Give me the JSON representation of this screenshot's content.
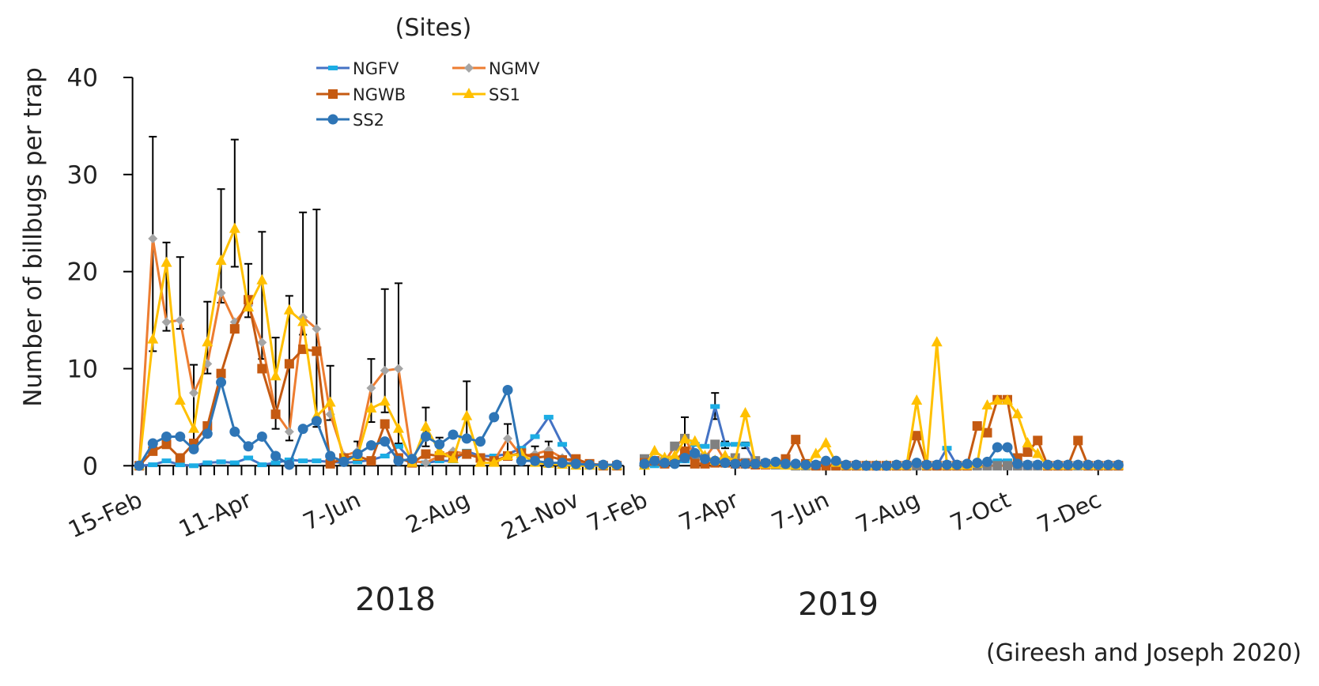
{
  "chart_data": {
    "type": "line",
    "title": "",
    "legend_title": "(Sites)",
    "ylabel": "Number of billbugs per trap",
    "ylim": [
      0,
      40
    ],
    "yticks": [
      0,
      10,
      20,
      30,
      40
    ],
    "grid": false,
    "legend_placement": "top-center",
    "citation": "(Gireesh and Joseph 2020)",
    "periods": [
      {
        "label": "2018",
        "tick_labels": [
          {
            "index": 0,
            "text": "15-Feb"
          },
          {
            "index": 8,
            "text": "11-Apr"
          },
          {
            "index": 16,
            "text": "7-Jun"
          },
          {
            "index": 24,
            "text": "2-Aug"
          },
          {
            "index": 32,
            "text": "21-Nov"
          }
        ],
        "series": {
          "NGFV": [
            0,
            0.1,
            0.5,
            0.1,
            0,
            0.3,
            0.4,
            0.3,
            0.8,
            0.1,
            0.3,
            0.6,
            0.5,
            0.5,
            0.4,
            0.3,
            0.4,
            0.6,
            1.0,
            2.0,
            0.5,
            0.3,
            0.5,
            0.5,
            1.5,
            1.0,
            1.0,
            1.2,
            1.8,
            3.0,
            5.0,
            2.2,
            0.3,
            0.1,
            0,
            0
          ],
          "NGMV": [
            0,
            23.4,
            14.8,
            15.0,
            7.5,
            10.5,
            17.8,
            14.8,
            16.5,
            12.7,
            5.5,
            3.5,
            15.3,
            14.1,
            5.3,
            1.0,
            1.5,
            8.0,
            9.8,
            10.0,
            0.5,
            0.3,
            1.0,
            1.5,
            1.2,
            0.8,
            0.5,
            2.8,
            1.0,
            1.2,
            1.6,
            0.8,
            0.3,
            0.2,
            0.1,
            0
          ],
          "NGWB": [
            0,
            1.5,
            2.2,
            0.8,
            2.3,
            4.1,
            9.5,
            14.1,
            17.1,
            10.0,
            5.3,
            10.5,
            12.0,
            11.8,
            0.2,
            0.8,
            1.0,
            0.5,
            4.3,
            0.8,
            0.3,
            1.2,
            1.0,
            1.0,
            1.2,
            0.8,
            0.5,
            1.0,
            1.3,
            0.8,
            1.0,
            0.6,
            0.7,
            0.2,
            0,
            0
          ],
          "SS1": [
            0,
            13.0,
            20.9,
            6.7,
            3.8,
            12.7,
            21.1,
            24.4,
            16.3,
            19.1,
            9.2,
            16.0,
            14.8,
            5.1,
            6.5,
            0.5,
            1.0,
            5.9,
            6.6,
            3.8,
            0.3,
            4.0,
            1.5,
            0.7,
            5.1,
            0.3,
            0.3,
            1.0,
            1.2,
            0.3,
            0.2,
            0.1,
            0,
            0,
            0,
            0
          ],
          "SS2": [
            0,
            2.3,
            3.0,
            3.0,
            1.7,
            3.3,
            8.6,
            3.5,
            2.0,
            3.0,
            1.0,
            0.1,
            3.8,
            4.6,
            1.0,
            0.4,
            1.2,
            2.1,
            2.5,
            0.5,
            0.7,
            3.0,
            2.2,
            3.2,
            2.8,
            2.5,
            5.0,
            7.8,
            0.5,
            0.5,
            0.3,
            0.3,
            0.2,
            0.1,
            0.1,
            0.1
          ]
        },
        "error_bars": [
          {
            "index": 1,
            "high": 33.9,
            "low": 11.8
          },
          {
            "index": 2,
            "high": 23.0,
            "low": 13.9
          },
          {
            "index": 3,
            "high": 21.5,
            "low": 14.1
          },
          {
            "index": 4,
            "high": 10.4,
            "low": 2.0
          },
          {
            "index": 5,
            "high": 16.9,
            "low": 9.5
          },
          {
            "index": 6,
            "high": 28.5,
            "low": 16.8
          },
          {
            "index": 7,
            "high": 33.6,
            "low": 20.5
          },
          {
            "index": 8,
            "high": 20.8,
            "low": 15.3
          },
          {
            "index": 9,
            "high": 24.1,
            "low": 11.0
          },
          {
            "index": 10,
            "high": 13.2,
            "low": 3.8
          },
          {
            "index": 11,
            "high": 17.5,
            "low": 2.6
          },
          {
            "index": 12,
            "high": 26.1,
            "low": 13.5
          },
          {
            "index": 13,
            "high": 26.4,
            "low": 4.0
          },
          {
            "index": 14,
            "high": 10.3,
            "low": 4.7
          },
          {
            "index": 16,
            "high": 2.5,
            "low": 0.3
          },
          {
            "index": 17,
            "high": 11.0,
            "low": 4.5
          },
          {
            "index": 18,
            "high": 18.2,
            "low": 5.5
          },
          {
            "index": 19,
            "high": 18.8,
            "low": 2.3
          },
          {
            "index": 21,
            "high": 6.0,
            "low": 2.0
          },
          {
            "index": 22,
            "high": 2.9,
            "low": 1.0
          },
          {
            "index": 24,
            "high": 8.7,
            "low": 3.0
          },
          {
            "index": 27,
            "high": 4.3,
            "low": 1.0
          },
          {
            "index": 29,
            "high": 2.0,
            "low": 0.5
          },
          {
            "index": 30,
            "high": 2.5,
            "low": 1.0
          }
        ]
      },
      {
        "label": "2019",
        "tick_labels": [
          {
            "index": 0,
            "text": "7-Feb"
          },
          {
            "index": 9,
            "text": "7-Apr"
          },
          {
            "index": 18,
            "text": "7-Jun"
          },
          {
            "index": 27,
            "text": "7-Aug"
          },
          {
            "index": 36,
            "text": "7-Oct"
          },
          {
            "index": 45,
            "text": "7-Dec"
          }
        ],
        "series": {
          "NGFV": [
            0,
            0,
            0.2,
            0.3,
            0.5,
            2.2,
            2.0,
            6.1,
            2.2,
            2.2,
            2.2,
            0.3,
            0.2,
            0.1,
            0.1,
            0.1,
            0,
            0,
            0,
            0,
            0,
            0,
            0,
            0,
            0,
            0,
            0,
            0,
            0,
            0,
            1.8,
            0,
            0,
            0.3,
            0.3,
            0.5,
            0.5,
            0,
            0,
            0,
            0,
            0,
            0,
            0,
            0,
            0,
            0,
            0
          ],
          "NGMV": [
            0.7,
            0.5,
            0.4,
            2.0,
            2.8,
            1.0,
            0.8,
            2.2,
            0.5,
            0.8,
            0.3,
            0.5,
            0.2,
            0.1,
            0.1,
            0,
            0,
            0,
            0,
            0,
            0,
            0,
            0,
            0,
            0,
            0,
            0,
            0,
            0,
            0,
            0,
            0,
            0,
            0,
            0,
            0,
            0,
            0,
            0,
            0,
            0,
            0,
            0,
            0,
            0,
            0,
            0,
            0
          ],
          "NGWB": [
            0.3,
            0.5,
            0.2,
            0.5,
            1.5,
            0.2,
            0.2,
            0.3,
            0.3,
            0.2,
            0.2,
            0.1,
            0.1,
            0.2,
            0.7,
            2.7,
            0.2,
            0,
            0,
            0,
            0,
            0,
            0,
            0,
            0,
            0,
            0,
            3.1,
            0,
            0,
            0,
            0,
            0,
            4.1,
            3.4,
            6.8,
            6.8,
            0.8,
            1.4,
            2.6,
            0,
            0,
            0,
            2.6,
            0,
            0,
            0,
            0
          ],
          "SS1": [
            0,
            1.5,
            0.8,
            1.0,
            2.7,
            2.5,
            1.0,
            0.5,
            1.0,
            0.5,
            5.4,
            0.2,
            0.1,
            0.1,
            0,
            0,
            0,
            1.2,
            2.3,
            0.3,
            0,
            0,
            0,
            0,
            0,
            0,
            0,
            6.7,
            0,
            12.7,
            0,
            0,
            0,
            0.2,
            6.2,
            6.7,
            6.7,
            5.3,
            2.3,
            1.2,
            0,
            0,
            0,
            0,
            0,
            0,
            0,
            0
          ],
          "SS2": [
            0.2,
            0.5,
            0.3,
            0.2,
            0.8,
            1.3,
            0.7,
            0.5,
            0.3,
            0.2,
            0.2,
            0.2,
            0.3,
            0.4,
            0.2,
            0.2,
            0.1,
            0.1,
            0.5,
            0.5,
            0.1,
            0.1,
            0,
            0,
            0,
            0.1,
            0.1,
            0.3,
            0.1,
            0.1,
            0.1,
            0.1,
            0.2,
            0.3,
            0.4,
            1.9,
            1.9,
            0.2,
            0.1,
            0.1,
            0.1,
            0.1,
            0.1,
            0.1,
            0.1,
            0.1,
            0.1,
            0.1
          ]
        },
        "error_bars": [
          {
            "index": 4,
            "high": 5.0,
            "low": 1.0
          },
          {
            "index": 7,
            "high": 7.5,
            "low": 4.8
          },
          {
            "index": 8,
            "high": 2.5,
            "low": 1.8
          },
          {
            "index": 10,
            "high": 2.4,
            "low": 1.8
          }
        ]
      }
    ],
    "series_styles": [
      {
        "name": "NGFV",
        "line": "#4472C4",
        "marker": "dash",
        "marker_color": "#1CADE4"
      },
      {
        "name": "NGMV",
        "line": "#ED7D31",
        "marker": "diamond",
        "marker_color": "#A5A5A5"
      },
      {
        "name": "NGWB",
        "line": "#C55A11",
        "marker": "square",
        "marker_color": "#C55A11"
      },
      {
        "name": "SS1",
        "line": "#FFC000",
        "marker": "triangle",
        "marker_color": "#FFC000"
      },
      {
        "name": "SS2",
        "line": "#2E75B6",
        "marker": "circle",
        "marker_color": "#2E75B6"
      }
    ],
    "colors": {
      "axis": "#000000",
      "text": "#222222",
      "error_bar": "#000000",
      "ngmv_2019_marker": "#808080"
    }
  }
}
